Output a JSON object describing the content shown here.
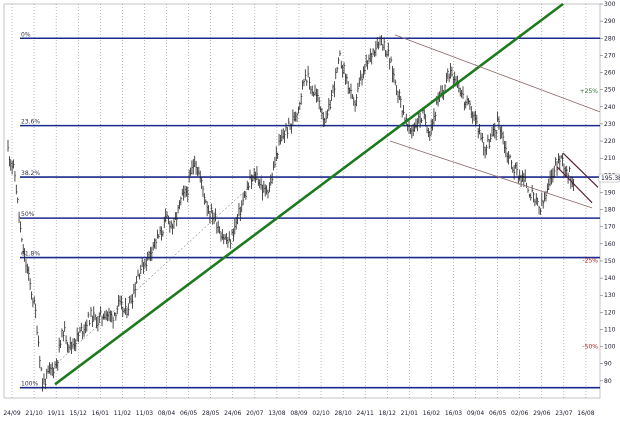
{
  "chart_data": {
    "type": "line",
    "title": "",
    "xlabel": "",
    "ylabel": "",
    "ylim": [
      70,
      300
    ],
    "y_ticks": [
      80,
      90,
      100,
      110,
      120,
      130,
      140,
      150,
      160,
      170,
      180,
      190,
      200,
      210,
      220,
      230,
      240,
      250,
      260,
      270,
      280,
      290,
      300
    ],
    "x_ticks": [
      "24/09",
      "21/10",
      "19/11",
      "15/12",
      "16/01",
      "11/02",
      "11/03",
      "08/04",
      "06/05",
      "28/05",
      "24/06",
      "20/07",
      "13/08",
      "08/09",
      "02/10",
      "28/10",
      "24/11",
      "18/12",
      "21/01",
      "16/02",
      "16/03",
      "09/04",
      "06/05",
      "02/06",
      "29/06",
      "23/07",
      "16/08"
    ],
    "grid": true,
    "fib_levels": [
      {
        "label": "0%",
        "value": 280
      },
      {
        "label": "23.6%",
        "value": 229
      },
      {
        "label": "38.2%",
        "value": 199
      },
      {
        "label": "50%",
        "value": 175
      },
      {
        "label": "61.8%",
        "value": 152
      },
      {
        "label": "100%",
        "value": 76
      }
    ],
    "pct_labels": [
      {
        "label": "+25%",
        "color": "#2e7d32",
        "value": 248
      },
      {
        "label": "-25%",
        "color": "#b71c1c",
        "value": 149
      },
      {
        "label": "-50%",
        "color": "#b71c1c",
        "value": 99
      }
    ],
    "last_price": "195.38",
    "series": [
      {
        "values": [
          215,
          200,
          160,
          140,
          120,
          78,
          85,
          90,
          110,
          100,
          105,
          112,
          118,
          115,
          120,
          117,
          124,
          120,
          130,
          145,
          150,
          160,
          165,
          175,
          170,
          185,
          192,
          210,
          195,
          180,
          175,
          165,
          160,
          172,
          185,
          196,
          200,
          190,
          195,
          215,
          225,
          230,
          240,
          260,
          250,
          243,
          230,
          250,
          268,
          256,
          240,
          255,
          265,
          275,
          280,
          270,
          255,
          240,
          225,
          230,
          235,
          226,
          240,
          250,
          262,
          255,
          243,
          238,
          228,
          216,
          222,
          232,
          215,
          205,
          200,
          195,
          186,
          180,
          190,
          205,
          210,
          202,
          195
        ]
      }
    ]
  }
}
